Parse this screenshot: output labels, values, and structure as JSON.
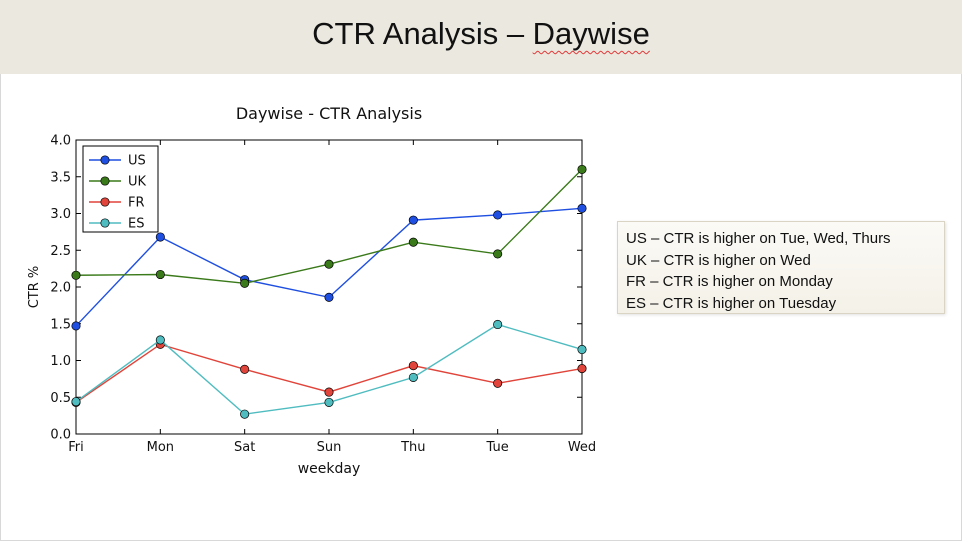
{
  "slide": {
    "title_prefix": "CTR Analysis – ",
    "title_emphasis": "Daywise"
  },
  "notes": [
    "US – CTR is higher on Tue, Wed, Thurs",
    "UK – CTR is higher on Wed",
    "FR – CTR is higher on Monday",
    "ES – CTR is higher on Tuesday"
  ],
  "chart_data": {
    "type": "line",
    "title": "Daywise - CTR Analysis",
    "xlabel": "weekday",
    "ylabel": "CTR %",
    "categories": [
      "Fri",
      "Mon",
      "Sat",
      "Sun",
      "Thu",
      "Tue",
      "Wed"
    ],
    "ylim": [
      0.0,
      4.0
    ],
    "yticks": [
      "0.0",
      "0.5",
      "1.0",
      "1.5",
      "2.0",
      "2.5",
      "3.0",
      "3.5",
      "4.0"
    ],
    "grid": false,
    "legend_position": "top-left",
    "series": [
      {
        "name": "US",
        "color": "#1f4fe0",
        "values": [
          1.47,
          2.68,
          2.1,
          1.86,
          2.91,
          2.98,
          3.07
        ]
      },
      {
        "name": "UK",
        "color": "#3a7a1a",
        "values": [
          2.16,
          2.17,
          2.05,
          2.31,
          2.61,
          2.45,
          3.6
        ]
      },
      {
        "name": "FR",
        "color": "#e0443a",
        "values": [
          0.43,
          1.22,
          0.88,
          0.57,
          0.93,
          0.69,
          0.89
        ]
      },
      {
        "name": "ES",
        "color": "#4fbcc0",
        "values": [
          0.44,
          1.28,
          0.27,
          0.43,
          0.77,
          1.49,
          1.15
        ]
      }
    ]
  }
}
